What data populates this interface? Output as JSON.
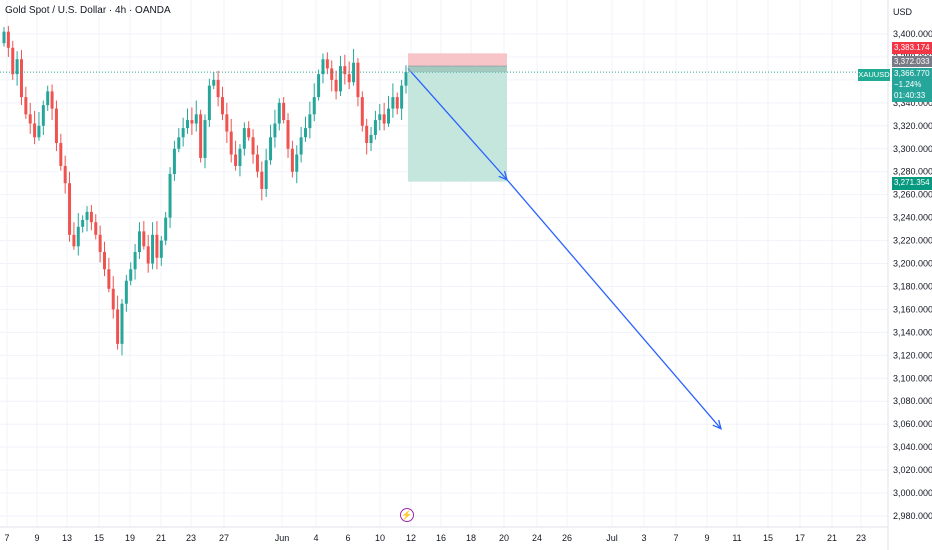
{
  "header": {
    "title": "Gold Spot / U.S. Dollar · 4h · OANDA",
    "currency": "USD",
    "symbol": "XAUUSD"
  },
  "price_labels": {
    "stop": "3,383.174",
    "entry": "3,372.033",
    "current_price": "3,366.770",
    "current_change": "−1.24%",
    "countdown": "01:40:33",
    "target": "3,271.354"
  },
  "colors": {
    "up": "#26a69a",
    "down": "#ef5350",
    "stop_zone": "#f7c5c8",
    "target_zone": "#c4e6dd",
    "arrow": "#2962ff",
    "price_line": "#26a69a",
    "grid": "#f0f3fa"
  },
  "icons": {
    "event_marker": "lightning-icon"
  },
  "chart_data": {
    "type": "candlestick",
    "title": "Gold Spot / U.S. Dollar · 4h · OANDA",
    "symbol": "XAUUSD",
    "interval": "4h",
    "y_axis": {
      "unit": "USD",
      "range": [
        2968,
        3420
      ],
      "ticks": [
        2980,
        3000,
        3020,
        3040,
        3060,
        3080,
        3100,
        3120,
        3140,
        3160,
        3180,
        3200,
        3220,
        3240,
        3260,
        3280,
        3300,
        3320,
        3340,
        3360,
        3380,
        3400
      ],
      "tick_labels": [
        "2,980.000",
        "3,000.000",
        "3,020.000",
        "3,040.000",
        "3,060.000",
        "3,080.000",
        "3,100.000",
        "3,120.000",
        "3,140.000",
        "3,160.000",
        "3,180.000",
        "3,200.000",
        "3,220.000",
        "3,240.000",
        "3,260.000",
        "3,280.000",
        "3,300.000",
        "3,320.000",
        "3,340.000",
        "3,360.000",
        "3,380.000",
        "3,400.000"
      ]
    },
    "x_axis": {
      "tick_labels": [
        "7",
        "9",
        "13",
        "15",
        "19",
        "21",
        "23",
        "27",
        "Jun",
        "4",
        "6",
        "10",
        "12",
        "16",
        "18",
        "20",
        "24",
        "26",
        "Jul",
        "3",
        "7",
        "9",
        "11",
        "15",
        "17",
        "21",
        "23"
      ]
    },
    "closes": [
      3402,
      3388,
      3365,
      3378,
      3345,
      3330,
      3322,
      3310,
      3320,
      3338,
      3350,
      3335,
      3305,
      3285,
      3270,
      3225,
      3215,
      3232,
      3238,
      3245,
      3236,
      3225,
      3210,
      3195,
      3178,
      3160,
      3130,
      3165,
      3185,
      3195,
      3210,
      3228,
      3215,
      3200,
      3225,
      3205,
      3220,
      3240,
      3278,
      3300,
      3310,
      3318,
      3325,
      3322,
      3330,
      3292,
      3325,
      3355,
      3360,
      3345,
      3330,
      3315,
      3295,
      3285,
      3300,
      3318,
      3310,
      3295,
      3280,
      3265,
      3290,
      3310,
      3322,
      3340,
      3325,
      3300,
      3280,
      3295,
      3310,
      3318,
      3330,
      3345,
      3365,
      3378,
      3370,
      3360,
      3350,
      3372,
      3365,
      3358,
      3375,
      3345,
      3320,
      3305,
      3312,
      3325,
      3330,
      3322,
      3335,
      3345,
      3335,
      3355,
      3366.77
    ],
    "current_price": 3366.77,
    "current_change_pct": -1.24,
    "position": {
      "type": "short",
      "stop": 3383.174,
      "entry": 3372.033,
      "target": 3271.354
    },
    "projection": [
      {
        "from_price": 3370,
        "to_price": 3273,
        "to_date": "20"
      },
      {
        "from_price": 3273,
        "to_price": 3056,
        "to_date": "9 Jul"
      }
    ],
    "grid": true
  }
}
